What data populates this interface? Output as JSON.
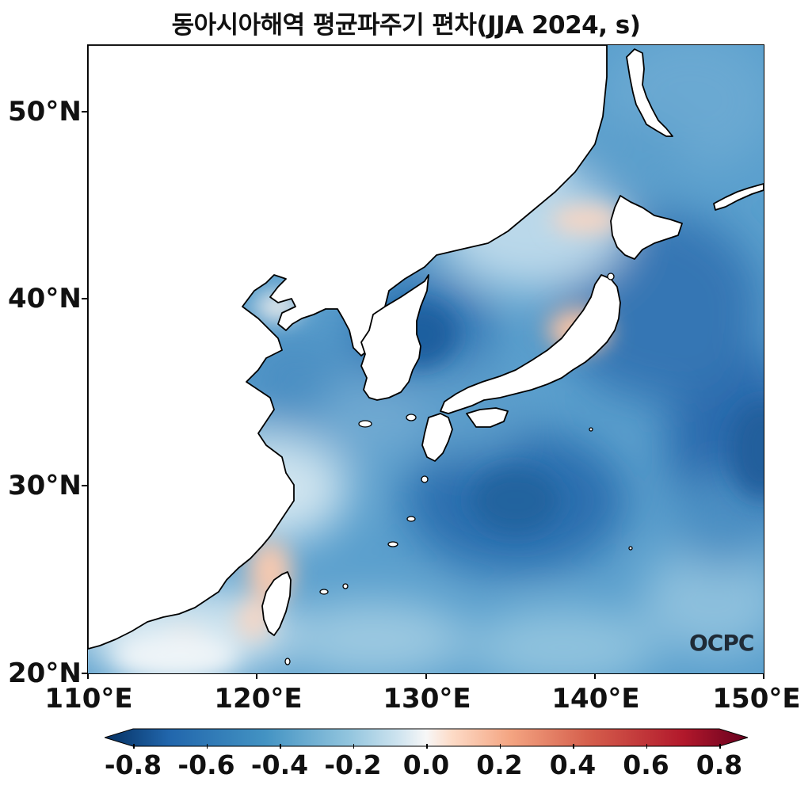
{
  "title": "동아시아해역 평균파주기 편차(JJA 2024, s)",
  "map": {
    "lon_range": [
      110,
      150
    ],
    "lat_range": [
      20,
      53.5
    ],
    "lat_ticks": [
      "20°N",
      "30°N",
      "40°N",
      "50°N"
    ],
    "lon_ticks": [
      "110°E",
      "120°E",
      "130°E",
      "140°E",
      "150°E"
    ],
    "variable": "mean wave period anomaly",
    "units": "s",
    "colormap": "RdBu_r",
    "land_color": "#ffffff",
    "coastline_color": "#000000"
  },
  "colorbar": {
    "min": -0.8,
    "max": 0.8,
    "ticks": [
      "-0.8",
      "-0.6",
      "-0.4",
      "-0.2",
      "0.0",
      "0.2",
      "0.4",
      "0.6",
      "0.8"
    ],
    "extend": "both",
    "colors": [
      "#053061",
      "#2166ac",
      "#4393c3",
      "#92c5de",
      "#d1e5f0",
      "#f7f7f7",
      "#fddbc7",
      "#f4a582",
      "#d6604d",
      "#b2182b",
      "#67001f"
    ]
  },
  "logo": "OCPC"
}
